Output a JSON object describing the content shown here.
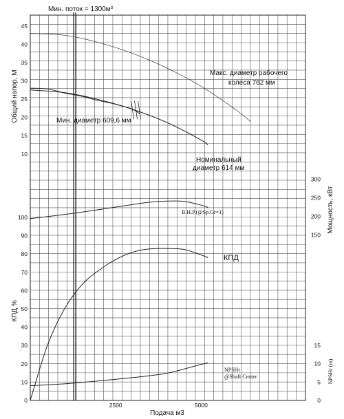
{
  "chart_data": {
    "type": "line",
    "x_axis": {
      "label": "Подача м3",
      "ticks": [
        "2500",
        "5000"
      ],
      "tick_values": [
        2500,
        5000
      ],
      "range": [
        0,
        8050
      ]
    },
    "head_panel": {
      "ylabel": "Общий напор, М",
      "y_ticks": [
        "45",
        "40",
        "35",
        "30",
        "25",
        "20",
        "15",
        "10"
      ],
      "y_tick_values": [
        45,
        40,
        35,
        30,
        25,
        20,
        15,
        10
      ],
      "ylim": [
        6,
        48
      ],
      "min_flow_label": "Мин. поток = 1300м³",
      "min_flow_x": 1300,
      "series": [
        {
          "name": "Макс. диаметр рабочего колеса 762 мм",
          "label_lines": [
            "Макс. диаметр рабочего",
            "колеса 762 мм"
          ],
          "x": [
            0,
            1000,
            2000,
            3000,
            4000,
            5000,
            6000,
            6450
          ],
          "y": [
            43,
            42.5,
            40.5,
            37.5,
            33.5,
            28.5,
            22.2,
            18.8
          ]
        },
        {
          "name": "Мин. диаметр 609,6 мм",
          "x": [
            0,
            500,
            1000,
            1500,
            2000,
            2500,
            3000,
            3200
          ],
          "y": [
            28,
            27.8,
            26.7,
            25.8,
            24.6,
            23.6,
            22.2,
            21
          ]
        },
        {
          "name": "Номинальный диаметр 614 мм",
          "label_lines": [
            "Номинальный",
            "диаметр 614 мм"
          ],
          "x": [
            0,
            1000,
            2000,
            3000,
            4000,
            5000,
            5200
          ],
          "y": [
            27.5,
            26.8,
            24.9,
            22.2,
            18.6,
            13.8,
            12.4
          ]
        }
      ]
    },
    "power_panel": {
      "ylabel": "Мощность, кВт",
      "y_ticks": [
        "300",
        "250",
        "200",
        "150"
      ],
      "y_tick_values": [
        300,
        250,
        200,
        150
      ],
      "ylim": [
        125,
        310
      ],
      "series": [
        {
          "name": "B.H.P.(@Sp.Gr=1)",
          "x": [
            0,
            1000,
            2000,
            3000,
            3500,
            4000,
            4500,
            5000,
            5200
          ],
          "y": [
            194,
            205,
            218,
            232,
            238,
            241,
            240,
            230,
            224
          ]
        }
      ]
    },
    "efficiency_panel": {
      "ylabel": "КПД %",
      "left_ticks": [
        "100",
        "90",
        "80",
        "70",
        "60",
        "50",
        "40",
        "30",
        "20",
        "10",
        "0"
      ],
      "left_tick_values": [
        100,
        90,
        80,
        70,
        60,
        50,
        40,
        30,
        20,
        10,
        0
      ],
      "ylim": [
        0,
        100
      ],
      "series": [
        {
          "name": "КПД",
          "x": [
            0,
            500,
            1000,
            1500,
            2000,
            2500,
            3000,
            3500,
            4000,
            4500,
            5000,
            5200
          ],
          "y": [
            0,
            30,
            50,
            63,
            71,
            77,
            81,
            82.8,
            83,
            82.5,
            79.5,
            78
          ]
        }
      ]
    },
    "npsh_panel": {
      "ylabel": "NPSHr (m)",
      "y_ticks": [
        "15",
        "10",
        "5",
        "0"
      ],
      "y_tick_values": [
        15,
        10,
        5,
        0
      ],
      "ylim": [
        0,
        20
      ],
      "series": [
        {
          "name": "NPSHr @Shaft Center",
          "label_lines": [
            "NPSHr",
            "@Shaft Center"
          ],
          "x": [
            0,
            1000,
            2000,
            3000,
            4000,
            5000,
            5200
          ],
          "y": [
            4,
            4.5,
            5.3,
            6.2,
            7.4,
            9.8,
            10.2
          ]
        }
      ]
    }
  }
}
